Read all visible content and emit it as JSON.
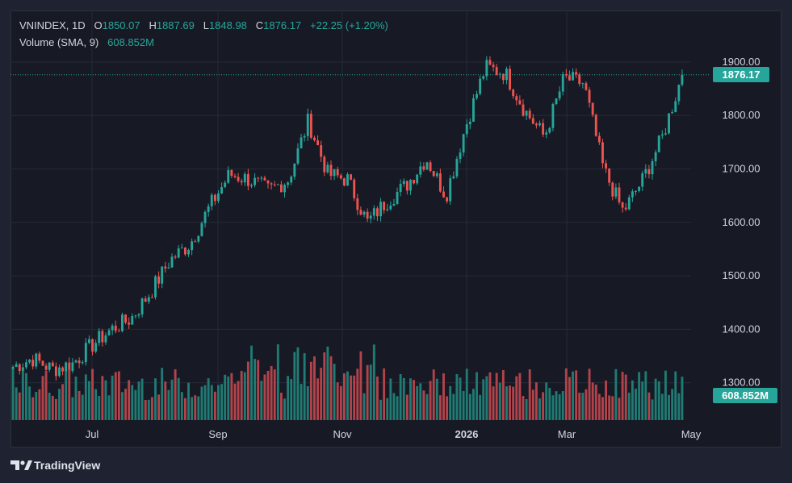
{
  "legend": {
    "symbol": "VNINDEX, 1D",
    "open_label": "O",
    "open": "1850.07",
    "high_label": "H",
    "high": "1887.69",
    "low_label": "L",
    "low": "1848.98",
    "close_label": "C",
    "close": "1876.17",
    "change": "+22.25 (+1.20%)",
    "volume_label": "Volume (SMA, 9)",
    "volume_value": "608.852M"
  },
  "price_tag": "1876.17",
  "volume_tag": "608.852M",
  "branding": "TradingView",
  "colors": {
    "background": "#171a25",
    "up": "#26a69a",
    "down": "#ef5350",
    "up_volume": "#1f7b73",
    "down_volume": "#b3434b",
    "grid": "#262a36",
    "text": "#d1d4dc"
  },
  "chart_data": {
    "type": "candlestick",
    "title": "VNINDEX",
    "interval": "1D",
    "x_ticks": [
      "Jul",
      "Sep",
      "Nov",
      "2026",
      "Mar",
      "May"
    ],
    "y_ticks": [
      1300,
      1400,
      1500,
      1600,
      1700,
      1800,
      1900
    ],
    "ylim": [
      1230,
      1995
    ],
    "grid": true,
    "last_close": 1876.17,
    "series": [
      {
        "name": "VNINDEX",
        "type": "candlestick",
        "x": [
          "2025-06",
          "2025-06",
          "2025-06",
          "2025-07",
          "2025-07",
          "2025-07",
          "2025-08",
          "2025-08",
          "2025-08",
          "2025-08",
          "2025-09",
          "2025-09",
          "2025-09",
          "2025-10",
          "2025-10",
          "2025-10",
          "2025-10",
          "2025-11",
          "2025-11",
          "2025-11",
          "2025-12",
          "2025-12",
          "2025-12",
          "2026-01",
          "2026-01",
          "2026-01",
          "2026-02",
          "2026-02",
          "2026-02",
          "2026-03",
          "2026-03",
          "2026-03",
          "2026-04",
          "2026-04",
          "2026-04"
        ],
        "values": [
          1330,
          1345,
          1325,
          1335,
          1370,
          1400,
          1420,
          1470,
          1530,
          1560,
          1630,
          1690,
          1680,
          1660,
          1680,
          1790,
          1690,
          1680,
          1600,
          1640,
          1670,
          1720,
          1650,
          1780,
          1890,
          1880,
          1810,
          1760,
          1870,
          1860,
          1700,
          1620,
          1680,
          1760,
          1876.17
        ]
      },
      {
        "name": "Volume (SMA, 9)",
        "type": "bar",
        "last": "608.852M"
      }
    ]
  }
}
